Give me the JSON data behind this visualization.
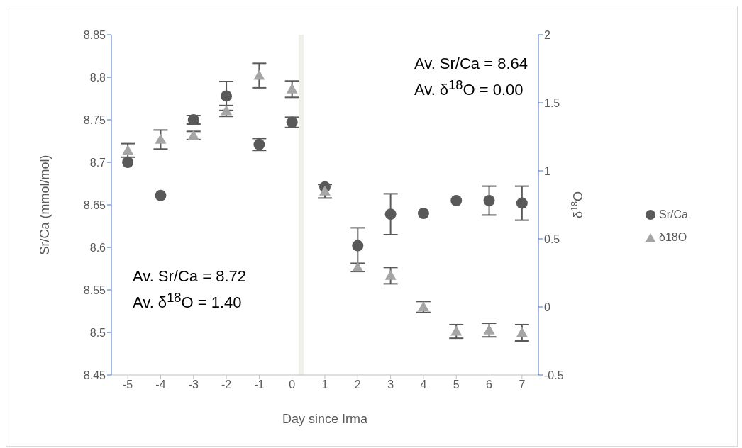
{
  "chart_data": {
    "type": "scatter",
    "xlabel": "Day since Irma",
    "ylabel": "Sr/Ca (mmol/mol)",
    "y2label": "δ$^{18}$O",
    "x": [
      -5,
      -4,
      -3,
      -2,
      -1,
      0,
      1,
      2,
      3,
      4,
      5,
      6,
      7
    ],
    "xlim": [
      -5.5,
      7.5
    ],
    "xticks": [
      -5,
      -4,
      -3,
      -2,
      -1,
      0,
      1,
      2,
      3,
      4,
      5,
      6,
      7
    ],
    "ylim": [
      8.45,
      8.85
    ],
    "yticks": [
      8.45,
      8.5,
      8.55,
      8.6,
      8.65,
      8.7,
      8.75,
      8.8,
      8.85
    ],
    "y2lim": [
      -0.5,
      2
    ],
    "y2ticks": [
      -0.5,
      0,
      0.5,
      1,
      1.5,
      2
    ],
    "series": [
      {
        "name": "Sr/Ca",
        "color": "#595959",
        "marker": "circle",
        "values": [
          8.7,
          8.661,
          8.75,
          8.778,
          8.721,
          8.747,
          8.671,
          8.602,
          8.639,
          8.64,
          8.655,
          8.655,
          8.652
        ],
        "errors": [
          null,
          null,
          0.005,
          0.017,
          0.007,
          0.006,
          null,
          0.021,
          0.024,
          null,
          null,
          0.017,
          0.02
        ]
      },
      {
        "name": "δ18O",
        "color": "#a5a5a5",
        "marker": "triangle",
        "axis": "y2",
        "values": [
          1.15,
          1.23,
          1.26,
          1.44,
          1.7,
          1.6,
          0.85,
          0.29,
          0.23,
          0.0,
          -0.18,
          -0.17,
          -0.19
        ],
        "errors": [
          0.05,
          0.07,
          0.03,
          0.04,
          0.09,
          0.06,
          0.05,
          0.03,
          0.06,
          0.04,
          0.05,
          0.05,
          0.06
        ]
      }
    ],
    "bands": [
      {
        "axis": "x",
        "from": 0.2,
        "to": 0.35,
        "color": "#f0efe9"
      }
    ],
    "annotations": [
      "Av. Sr/Ca = 8.72",
      "Av. δ$^{18}$O = 1.40",
      "Av. Sr/Ca = 8.64",
      "Av. δ$^{18}$O = 0.00"
    ],
    "legend": "right"
  }
}
